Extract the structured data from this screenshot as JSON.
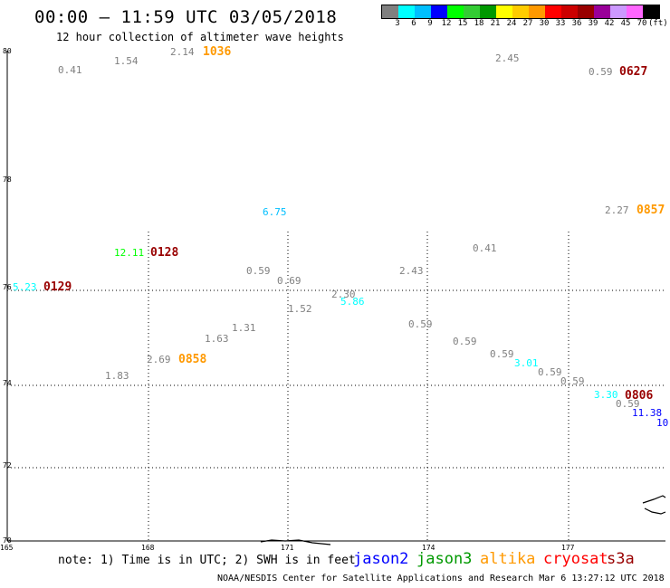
{
  "header": {
    "title": "00:00 – 11:59 UTC 03/05/2018",
    "subtitle": "12 hour collection of altimeter wave heights"
  },
  "colorbar": {
    "colors": [
      "#808080",
      "#00ffff",
      "#00bfff",
      "#0000ff",
      "#00ff00",
      "#33cc33",
      "#009900",
      "#ffff00",
      "#ffcc00",
      "#ff9900",
      "#ff0000",
      "#cc0000",
      "#990000",
      "#990099",
      "#cc99ff",
      "#ff66ff",
      "#000000"
    ],
    "ticks": [
      "3",
      "6",
      "9",
      "12",
      "15",
      "18",
      "21",
      "24",
      "27",
      "30",
      "33",
      "36",
      "39",
      "42",
      "45",
      "70"
    ],
    "units": "(ft)"
  },
  "axes": {
    "lat_labels": [
      "80",
      "78",
      "76",
      "74",
      "72",
      "70"
    ],
    "lon_labels": [
      "165",
      "168",
      "171",
      "174",
      "177"
    ]
  },
  "observations": [
    {
      "text": "0.41",
      "color": "#808080"
    },
    {
      "text": "1.54",
      "color": "#808080"
    },
    {
      "text": "2.14",
      "color": "#808080"
    },
    {
      "text": "1036",
      "color": "#ff9900",
      "kind": "time"
    },
    {
      "text": "2.45",
      "color": "#808080"
    },
    {
      "text": "0.59",
      "color": "#808080"
    },
    {
      "text": "0627",
      "color": "#990000",
      "kind": "time"
    },
    {
      "text": "6.75",
      "color": "#00bfff"
    },
    {
      "text": "2.27",
      "color": "#808080"
    },
    {
      "text": "0857",
      "color": "#ff9900",
      "kind": "time"
    },
    {
      "text": "12.11",
      "color": "#00ff00"
    },
    {
      "text": "0128",
      "color": "#990000",
      "kind": "time"
    },
    {
      "text": "0.41",
      "color": "#808080"
    },
    {
      "text": "0.59",
      "color": "#808080"
    },
    {
      "text": "2.43",
      "color": "#808080"
    },
    {
      "text": "0.69",
      "color": "#808080"
    },
    {
      "text": "5.23",
      "color": "#00ffff"
    },
    {
      "text": "0129",
      "color": "#990000",
      "kind": "time"
    },
    {
      "text": "2.30",
      "color": "#808080"
    },
    {
      "text": "5.86",
      "color": "#00ffff"
    },
    {
      "text": "1.52",
      "color": "#808080"
    },
    {
      "text": "0.59",
      "color": "#808080"
    },
    {
      "text": "1.31",
      "color": "#808080"
    },
    {
      "text": "1.63",
      "color": "#808080"
    },
    {
      "text": "0.59",
      "color": "#808080"
    },
    {
      "text": "0.59",
      "color": "#808080"
    },
    {
      "text": "3.01",
      "color": "#00ffff"
    },
    {
      "text": "2.69",
      "color": "#808080"
    },
    {
      "text": "0858",
      "color": "#ff9900",
      "kind": "time"
    },
    {
      "text": "0.59",
      "color": "#808080"
    },
    {
      "text": "1.83",
      "color": "#808080"
    },
    {
      "text": "0.59",
      "color": "#808080"
    },
    {
      "text": "3.30",
      "color": "#00ffff"
    },
    {
      "text": "0806",
      "color": "#990000",
      "kind": "time"
    },
    {
      "text": "0.59",
      "color": "#808080"
    },
    {
      "text": "11.38",
      "color": "#0000ff"
    },
    {
      "text": "10",
      "color": "#0000ff"
    }
  ],
  "footer": {
    "note": "note: 1) Time is in UTC; 2) SWH is in feet",
    "satellites": [
      {
        "name": "jason2",
        "color": "#0000ff"
      },
      {
        "name": "jason3",
        "color": "#009900"
      },
      {
        "name": "altika",
        "color": "#ff9900"
      },
      {
        "name": "cryosat",
        "color": "#ff0000"
      },
      {
        "name": "s3a",
        "color": "#990000"
      }
    ],
    "credit": "NOAA/NESDIS Center for Satellite Applications and Research   Mar  6 13:27:12 UTC 2018"
  }
}
